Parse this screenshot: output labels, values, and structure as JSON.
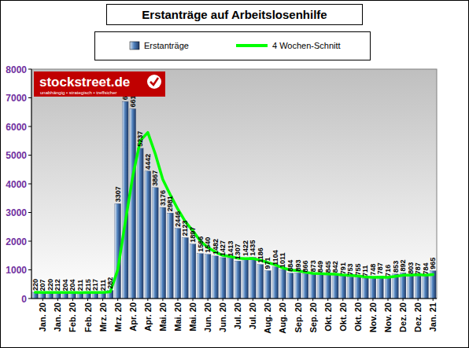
{
  "chart_data": {
    "type": "bar",
    "title": "Erstanträge auf Arbeitslosenhilfe",
    "annotations": [
      "stockstreet.de",
      "unabhängig • strategisch • treffsicher"
    ],
    "categories": [
      null,
      "Jan. 20",
      null,
      "Jan. 20",
      null,
      "Feb. 20",
      null,
      "Feb. 20",
      null,
      "Mrz. 20",
      null,
      "Mrz. 20",
      null,
      "Apr. 20",
      null,
      "Apr. 20",
      null,
      "Mai. 20",
      null,
      "Mai. 20",
      null,
      "Mai. 20",
      null,
      "Jun. 20",
      null,
      "Jun. 20",
      null,
      "Jul. 20",
      null,
      "Jul. 20",
      null,
      "Aug. 20",
      null,
      "Aug. 20",
      null,
      "Sep. 20",
      null,
      "Sep. 20",
      null,
      "Okt. 20",
      null,
      "Okt. 20",
      null,
      "Okt. 20",
      null,
      "Nov. 20",
      null,
      "Nov. 20",
      null,
      "Dez. 20",
      null,
      "Dez. 20",
      null,
      "Jan. 21"
    ],
    "series": [
      {
        "name": "Erstanträge",
        "type": "bar",
        "color": "#4f81bd",
        "values": [
          220,
          207,
          220,
          212,
          204,
          204,
          211,
          215,
          217,
          211,
          282,
          3307,
          6867,
          6615,
          5237,
          4442,
          3867,
          3176,
          2981,
          2446,
          2123,
          1897,
          1566,
          1540,
          1482,
          1427,
          1413,
          1307,
          1422,
          1435,
          1186,
          971,
          1104,
          1011,
          884,
          893,
          866,
          873,
          849,
          845,
          842,
          791,
          753,
          755,
          711,
          748,
          787,
          716,
          853,
          892,
          803,
          787,
          784,
          965
        ]
      },
      {
        "name": "4 Wochen-Schnitt",
        "type": "line",
        "color": "#00ff00",
        "values": [
          216,
          215,
          214,
          215,
          211,
          210,
          206,
          209,
          212,
          214,
          232,
          1004,
          2667,
          4268,
          5507,
          5790,
          5040,
          4150,
          3615,
          3118,
          2681,
          2362,
          2008,
          1782,
          1621,
          1504,
          1465,
          1407,
          1392,
          1394,
          1337,
          1254,
          1174,
          1068,
          993,
          973,
          914,
          879,
          870,
          858,
          852,
          824,
          808,
          785,
          752,
          742,
          750,
          740,
          776,
          812,
          814,
          834,
          816,
          835
        ]
      }
    ],
    "ylim": [
      0,
      8000
    ],
    "yticks": [
      0,
      1000,
      2000,
      3000,
      4000,
      5000,
      6000,
      7000,
      8000
    ],
    "grid": false,
    "legend": "top",
    "data_labels": true
  }
}
